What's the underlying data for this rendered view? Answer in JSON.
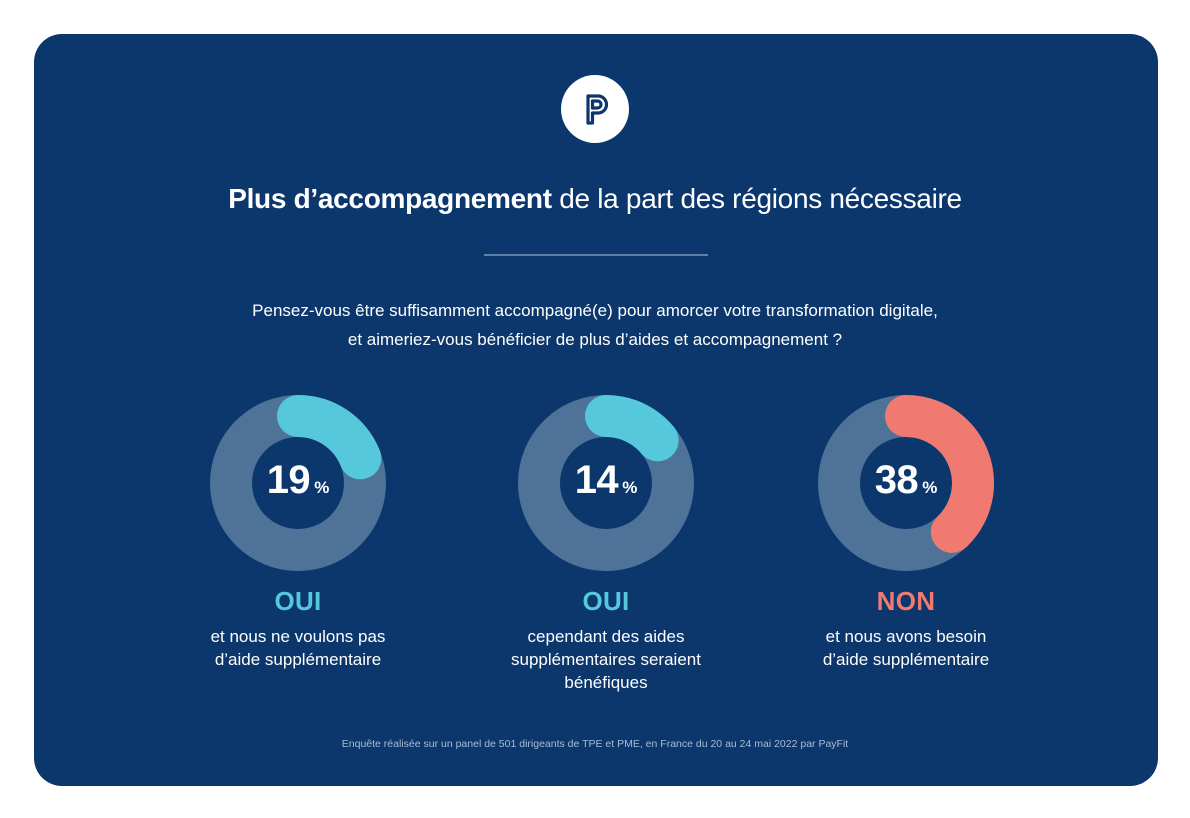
{
  "brand": {
    "logo_icon": "payfit-p-icon",
    "background": "#0b376d",
    "accent_blue": "#56c8dc",
    "accent_red": "#f07a70",
    "track": "#4f7299"
  },
  "header": {
    "title_bold": "Plus d’accompagnement",
    "title_rest": " de la part des régions nécessaire"
  },
  "question": {
    "line1": "Pensez-vous être suffisamment accompagné(e) pour amorcer votre transformation digitale,",
    "line2": "et aimeriez-vous bénéficier de plus d’aides et accompagnement ?"
  },
  "chart_data": {
    "type": "pie",
    "title": "Plus d’accompagnement de la part des régions nécessaire",
    "unit": "%",
    "items": [
      {
        "value": 19,
        "label": "OUI",
        "description": [
          "et nous ne voulons pas",
          "d’aide supplémentaire"
        ],
        "color": "#56c8dc"
      },
      {
        "value": 14,
        "label": "OUI",
        "description": [
          "cependant des aides",
          "supplémentaires seraient",
          "bénéfiques"
        ],
        "color": "#56c8dc"
      },
      {
        "value": 38,
        "label": "NON",
        "description": [
          "et nous avons besoin",
          "d’aide supplémentaire"
        ],
        "color": "#f07a70"
      }
    ]
  },
  "footnote": "Enquête réalisée sur un panel de 501 dirigeants de TPE et PME, en France du 20 au 24 mai 2022 par PayFit"
}
